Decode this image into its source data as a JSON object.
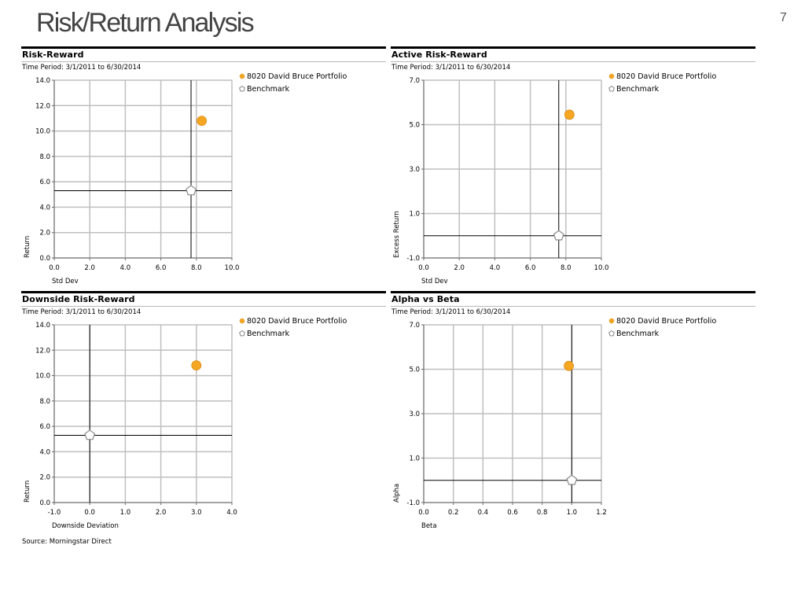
{
  "slide": {
    "title": "Risk/Return Analysis",
    "page_number": "7"
  },
  "source": "Source: Morningstar Direct",
  "colors": {
    "portfolio": "#f5a623",
    "benchmark": "#ffffff",
    "grid": "#bfbfbf",
    "crosshair": "#000000"
  },
  "chart_data": [
    {
      "type": "scatter",
      "title": "Risk-Reward",
      "period": "Time Period: 3/1/2011 to 6/30/2014",
      "xlabel": "Std Dev",
      "ylabel": "Return",
      "xlim": [
        0,
        10
      ],
      "ylim": [
        0,
        14
      ],
      "xticks": [
        "0.0",
        "2.0",
        "4.0",
        "6.0",
        "8.0",
        "10.0"
      ],
      "yticks": [
        "0.0",
        "2.0",
        "4.0",
        "6.0",
        "8.0",
        "10.0",
        "12.0",
        "14.0"
      ],
      "xtickvals": [
        0,
        2,
        4,
        6,
        8,
        10
      ],
      "ytickvals": [
        0,
        2,
        4,
        6,
        8,
        10,
        12,
        14
      ],
      "legend": [
        "8020 David Bruce Portfolio",
        "Benchmark"
      ],
      "points": [
        {
          "name": "8020 David Bruce Portfolio",
          "x": 8.3,
          "y": 10.8,
          "marker": "circle"
        },
        {
          "name": "Benchmark",
          "x": 7.7,
          "y": 5.3,
          "marker": "pentagon"
        }
      ],
      "crosshair": {
        "x": 7.7,
        "y": 5.3
      }
    },
    {
      "type": "scatter",
      "title": "Active Risk-Reward",
      "period": "Time Period: 3/1/2011 to 6/30/2014",
      "xlabel": "Std Dev",
      "ylabel": "Excess Return",
      "xlim": [
        0,
        10
      ],
      "ylim": [
        -1,
        7
      ],
      "xticks": [
        "0.0",
        "2.0",
        "4.0",
        "6.0",
        "8.0",
        "10.0"
      ],
      "yticks": [
        "-1.0",
        "1.0",
        "3.0",
        "5.0",
        "7.0"
      ],
      "xtickvals": [
        0,
        2,
        4,
        6,
        8,
        10
      ],
      "ytickvals": [
        -1,
        1,
        3,
        5,
        7
      ],
      "legend": [
        "8020 David Bruce Portfolio",
        "Benchmark"
      ],
      "points": [
        {
          "name": "8020 David Bruce Portfolio",
          "x": 8.2,
          "y": 5.45,
          "marker": "circle"
        },
        {
          "name": "Benchmark",
          "x": 7.6,
          "y": 0.0,
          "marker": "pentagon"
        }
      ],
      "crosshair": {
        "x": 7.6,
        "y": 0.0
      }
    },
    {
      "type": "scatter",
      "title": "Downside Risk-Reward",
      "period": "Time Period: 3/1/2011 to 6/30/2014",
      "xlabel": "Downside Deviation",
      "ylabel": "Return",
      "xlim": [
        -1,
        4
      ],
      "ylim": [
        0,
        14
      ],
      "xticks": [
        "-1.0",
        "0.0",
        "1.0",
        "2.0",
        "3.0",
        "4.0"
      ],
      "yticks": [
        "0.0",
        "2.0",
        "4.0",
        "6.0",
        "8.0",
        "10.0",
        "12.0",
        "14.0"
      ],
      "xtickvals": [
        -1,
        0,
        1,
        2,
        3,
        4
      ],
      "ytickvals": [
        0,
        2,
        4,
        6,
        8,
        10,
        12,
        14
      ],
      "legend": [
        "8020 David Bruce Portfolio",
        "Benchmark"
      ],
      "points": [
        {
          "name": "8020 David Bruce Portfolio",
          "x": 3.0,
          "y": 10.8,
          "marker": "circle"
        },
        {
          "name": "Benchmark",
          "x": 0.0,
          "y": 5.3,
          "marker": "pentagon"
        }
      ],
      "crosshair": {
        "x": 0.0,
        "y": 5.3
      }
    },
    {
      "type": "scatter",
      "title": "Alpha vs Beta",
      "period": "Time Period: 3/1/2011 to 6/30/2014",
      "xlabel": "Beta",
      "ylabel": "Alpha",
      "xlim": [
        0,
        1.2
      ],
      "ylim": [
        -1,
        7
      ],
      "xticks": [
        "0.0",
        "0.2",
        "0.4",
        "0.6",
        "0.8",
        "1.0",
        "1.2"
      ],
      "yticks": [
        "-1.0",
        "1.0",
        "3.0",
        "5.0",
        "7.0"
      ],
      "xtickvals": [
        0,
        0.2,
        0.4,
        0.6,
        0.8,
        1.0,
        1.2
      ],
      "ytickvals": [
        -1,
        1,
        3,
        5,
        7
      ],
      "legend": [
        "8020 David Bruce Portfolio",
        "Benchmark"
      ],
      "points": [
        {
          "name": "8020 David Bruce Portfolio",
          "x": 0.98,
          "y": 5.15,
          "marker": "circle"
        },
        {
          "name": "Benchmark",
          "x": 1.0,
          "y": 0.0,
          "marker": "pentagon"
        }
      ],
      "crosshair": {
        "x": 1.0,
        "y": 0.0
      }
    }
  ]
}
